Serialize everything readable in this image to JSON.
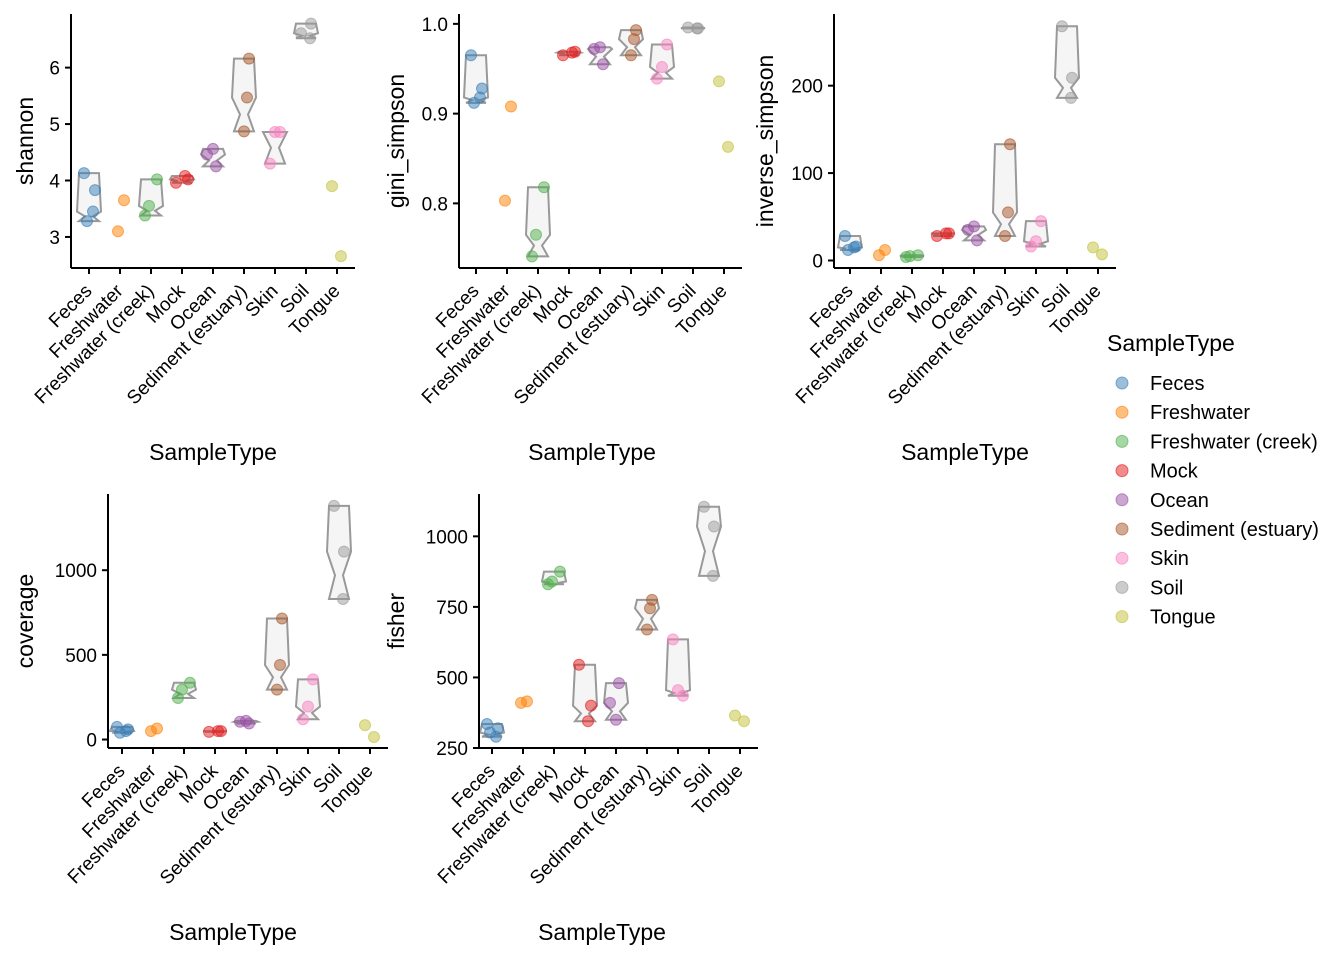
{
  "colors": {
    "Feces": "#377eb8",
    "Freshwater": "#ff7f00",
    "Freshwater (creek)": "#4daf4a",
    "Mock": "#e41a1c",
    "Ocean": "#984ea3",
    "Sediment (estuary)": "#a65628",
    "Skin": "#f781bf",
    "Soil": "#999999",
    "Tongue": "#c2c23a",
    "violin_stroke": "#999999",
    "violin_fill": "#f5f5f5"
  },
  "legend": {
    "title": "SampleType",
    "items": [
      "Feces",
      "Freshwater",
      "Freshwater (creek)",
      "Mock",
      "Ocean",
      "Sediment (estuary)",
      "Skin",
      "Soil",
      "Tongue"
    ]
  },
  "chart_data": [
    {
      "type": "scatter",
      "xlabel": "SampleType",
      "ylabel": "shannon",
      "categories": [
        "Feces",
        "Freshwater",
        "Freshwater (creek)",
        "Mock",
        "Ocean",
        "Sediment (estuary)",
        "Skin",
        "Soil",
        "Tongue"
      ],
      "yticks": [
        3,
        4,
        5,
        6
      ],
      "ylim": [
        2.45,
        6.95
      ],
      "points": [
        [
          0,
          4.13
        ],
        [
          0,
          3.45
        ],
        [
          0,
          3.28
        ],
        [
          0,
          3.83
        ],
        [
          1,
          3.65
        ],
        [
          1,
          3.1
        ],
        [
          2,
          3.55
        ],
        [
          2,
          4.02
        ],
        [
          2,
          3.38
        ],
        [
          3,
          4.02
        ],
        [
          3,
          3.96
        ],
        [
          3,
          4.08
        ],
        [
          4,
          4.46
        ],
        [
          4,
          4.25
        ],
        [
          4,
          4.56
        ],
        [
          5,
          5.47
        ],
        [
          5,
          4.87
        ],
        [
          5,
          6.16
        ],
        [
          6,
          4.86
        ],
        [
          6,
          4.86
        ],
        [
          6,
          4.3
        ],
        [
          7,
          6.78
        ],
        [
          7,
          6.61
        ],
        [
          7,
          6.52
        ],
        [
          8,
          3.9
        ],
        [
          8,
          2.66
        ]
      ]
    },
    {
      "type": "scatter",
      "xlabel": "SampleType",
      "ylabel": "gini_simpson",
      "categories": [
        "Feces",
        "Freshwater",
        "Freshwater (creek)",
        "Mock",
        "Ocean",
        "Sediment (estuary)",
        "Skin",
        "Soil",
        "Tongue"
      ],
      "yticks": [
        0.8,
        0.9,
        1.0
      ],
      "ytick_labels": [
        "0.8",
        "0.9",
        "1.0"
      ],
      "ylim": [
        0.728,
        1.011
      ],
      "points": [
        [
          0,
          0.965
        ],
        [
          0,
          0.918
        ],
        [
          0,
          0.912
        ],
        [
          0,
          0.928
        ],
        [
          1,
          0.908
        ],
        [
          1,
          0.803
        ],
        [
          2,
          0.765
        ],
        [
          2,
          0.818
        ],
        [
          2,
          0.741
        ],
        [
          3,
          0.969
        ],
        [
          3,
          0.965
        ],
        [
          3,
          0.968
        ],
        [
          4,
          0.972
        ],
        [
          4,
          0.955
        ],
        [
          4,
          0.974
        ],
        [
          5,
          0.983
        ],
        [
          5,
          0.965
        ],
        [
          5,
          0.993
        ],
        [
          6,
          0.952
        ],
        [
          6,
          0.977
        ],
        [
          6,
          0.939
        ],
        [
          7,
          0.995
        ],
        [
          7,
          0.996
        ],
        [
          7,
          0.995
        ],
        [
          8,
          0.936
        ],
        [
          8,
          0.863
        ]
      ]
    },
    {
      "type": "scatter",
      "xlabel": "SampleType",
      "ylabel": "inverse_simpson",
      "categories": [
        "Feces",
        "Freshwater",
        "Freshwater (creek)",
        "Mock",
        "Ocean",
        "Sediment (estuary)",
        "Skin",
        "Soil",
        "Tongue"
      ],
      "yticks": [
        0,
        100,
        200
      ],
      "ylim": [
        -8.6,
        282
      ],
      "points": [
        [
          0,
          28
        ],
        [
          0,
          15
        ],
        [
          0,
          12
        ],
        [
          0,
          16
        ],
        [
          1,
          12
        ],
        [
          1,
          6
        ],
        [
          2,
          5
        ],
        [
          2,
          6
        ],
        [
          2,
          4
        ],
        [
          3,
          31
        ],
        [
          3,
          28
        ],
        [
          3,
          31
        ],
        [
          4,
          35
        ],
        [
          4,
          23
        ],
        [
          4,
          39
        ],
        [
          5,
          55
        ],
        [
          5,
          28
        ],
        [
          5,
          133
        ],
        [
          6,
          22
        ],
        [
          6,
          45
        ],
        [
          6,
          16
        ],
        [
          7,
          209
        ],
        [
          7,
          268
        ],
        [
          7,
          186
        ],
        [
          8,
          15
        ],
        [
          8,
          7
        ]
      ]
    },
    {
      "type": "scatter",
      "xlabel": "SampleType",
      "ylabel": "coverage",
      "categories": [
        "Feces",
        "Freshwater",
        "Freshwater (creek)",
        "Mock",
        "Ocean",
        "Sediment (estuary)",
        "Skin",
        "Soil",
        "Tongue"
      ],
      "yticks": [
        0,
        500,
        1000
      ],
      "ylim": [
        -50,
        1450
      ],
      "points": [
        [
          0,
          75
        ],
        [
          0,
          50
        ],
        [
          0,
          40
        ],
        [
          0,
          60
        ],
        [
          1,
          65
        ],
        [
          1,
          50
        ],
        [
          2,
          295
        ],
        [
          2,
          335
        ],
        [
          2,
          245
        ],
        [
          3,
          50
        ],
        [
          3,
          45
        ],
        [
          3,
          50
        ],
        [
          4,
          105
        ],
        [
          4,
          95
        ],
        [
          4,
          110
        ],
        [
          5,
          440
        ],
        [
          5,
          295
        ],
        [
          5,
          715
        ],
        [
          6,
          195
        ],
        [
          6,
          355
        ],
        [
          6,
          120
        ],
        [
          7,
          1110
        ],
        [
          7,
          1380
        ],
        [
          7,
          830
        ],
        [
          8,
          85
        ],
        [
          8,
          15
        ]
      ]
    },
    {
      "type": "scatter",
      "xlabel": "SampleType",
      "ylabel": "fisher",
      "categories": [
        "Feces",
        "Freshwater",
        "Freshwater (creek)",
        "Mock",
        "Ocean",
        "Sediment (estuary)",
        "Skin",
        "Soil",
        "Tongue"
      ],
      "yticks": [
        250,
        500,
        750,
        1000
      ],
      "ylim": [
        250,
        1150
      ],
      "points": [
        [
          0,
          335
        ],
        [
          0,
          290
        ],
        [
          0,
          305
        ],
        [
          0,
          320
        ],
        [
          1,
          415
        ],
        [
          1,
          410
        ],
        [
          2,
          840
        ],
        [
          2,
          875
        ],
        [
          2,
          830
        ],
        [
          3,
          400
        ],
        [
          3,
          545
        ],
        [
          3,
          345
        ],
        [
          4,
          410
        ],
        [
          4,
          480
        ],
        [
          4,
          350
        ],
        [
          5,
          745
        ],
        [
          5,
          670
        ],
        [
          5,
          775
        ],
        [
          6,
          455
        ],
        [
          6,
          435
        ],
        [
          6,
          635
        ],
        [
          7,
          1035
        ],
        [
          7,
          1105
        ],
        [
          7,
          860
        ],
        [
          8,
          365
        ],
        [
          8,
          345
        ]
      ]
    }
  ]
}
